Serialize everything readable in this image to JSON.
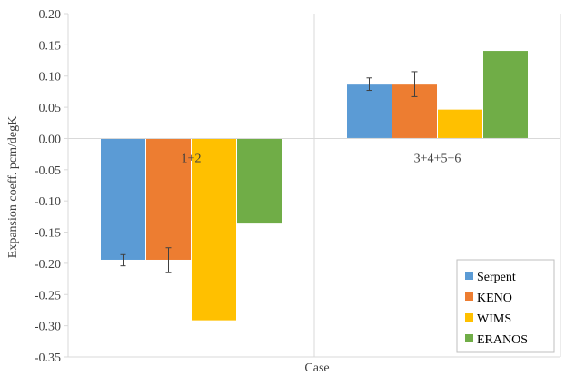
{
  "chart_data": {
    "type": "bar",
    "xlabel": "Case",
    "ylabel": "Expansion coeff. pcm/degK",
    "ylim": [
      -0.35,
      0.2
    ],
    "ytick_step": 0.05,
    "yticks": [
      "-0.35",
      "-0.30",
      "-0.25",
      "-0.20",
      "-0.15",
      "-0.10",
      "-0.05",
      "0.00",
      "0.05",
      "0.10",
      "0.15",
      "0.20"
    ],
    "grid": "vertical category separators",
    "legend_position": "bottom-right",
    "categories": [
      "1+2",
      "3+4+5+6"
    ],
    "series": [
      {
        "name": "Serpent",
        "color": "#5b9bd5",
        "values": [
          -0.195,
          0.087
        ],
        "error": [
          0.009,
          0.01
        ]
      },
      {
        "name": "KENO",
        "color": "#ed7d31",
        "values": [
          -0.195,
          0.087
        ],
        "error": [
          0.02,
          0.02
        ]
      },
      {
        "name": "WIMS",
        "color": "#ffc000",
        "values": [
          -0.292,
          0.047
        ],
        "error": [
          null,
          null
        ]
      },
      {
        "name": "ERANOS",
        "color": "#70ad47",
        "values": [
          -0.137,
          0.141
        ],
        "error": [
          null,
          null
        ]
      }
    ]
  }
}
